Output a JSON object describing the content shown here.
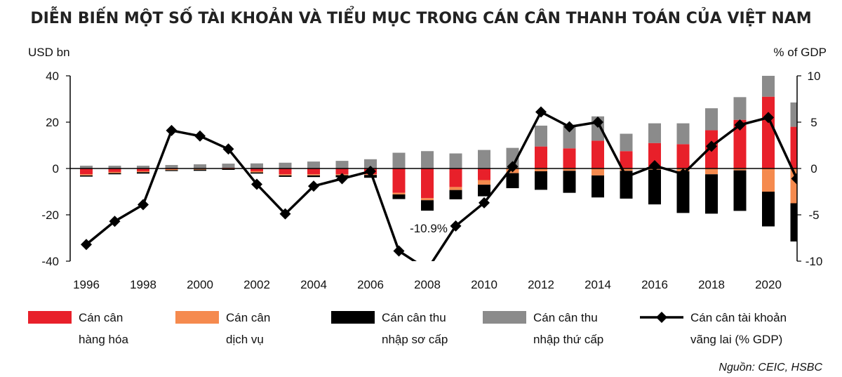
{
  "chart_data": {
    "type": "bar",
    "title": "DIỄN BIẾN MỘT SỐ TÀI KHOẢN VÀ TIỂU MỤC TRONG CÁN CÂN THANH TOÁN CỦA VIỆT NAM",
    "y_left_unit": "USD bn",
    "y_right_unit": "% of GDP",
    "ylim_left": [
      -40,
      40
    ],
    "ylim_right": [
      -10,
      10
    ],
    "y_left_ticks": [
      "40",
      "20",
      "0",
      "-20",
      "-40"
    ],
    "y_right_ticks": [
      "10",
      "5",
      "0",
      "-5",
      "-10"
    ],
    "x_tick_labels": [
      "1996",
      "1998",
      "2000",
      "2002",
      "2004",
      "2006",
      "2008",
      "2010",
      "2012",
      "2014",
      "2016",
      "2018",
      "2020"
    ],
    "years": [
      1996,
      1997,
      1998,
      1999,
      2000,
      2001,
      2002,
      2003,
      2004,
      2005,
      2006,
      2007,
      2008,
      2009,
      2010,
      2011,
      2012,
      2013,
      2014,
      2015,
      2016,
      2017,
      2018,
      2019,
      2020,
      2021
    ],
    "series": [
      {
        "name": "Cán cân hàng hóa",
        "color": "#e8202a",
        "stack": "bars",
        "values": [
          -2.5,
          -1.5,
          -1.2,
          -0.3,
          -0.2,
          0.3,
          -1.2,
          -2.5,
          -2.5,
          -2.5,
          -2.5,
          -10.5,
          -12.8,
          -8.0,
          -5.0,
          0.1,
          9.5,
          8.7,
          12.0,
          7.5,
          11.0,
          10.5,
          16.5,
          21.0,
          31.0,
          18.0
        ]
      },
      {
        "name": "Cán cân dịch vụ",
        "color": "#f58a4e",
        "stack": "bars",
        "values": [
          -0.5,
          -0.5,
          -0.4,
          -0.4,
          -0.3,
          -0.3,
          -0.5,
          -0.5,
          -0.5,
          -0.4,
          -0.3,
          -0.7,
          -0.9,
          -1.3,
          -2.0,
          -2.0,
          -1.2,
          -1.0,
          -3.0,
          -1.0,
          -0.5,
          -1.2,
          -2.5,
          -0.8,
          -10.0,
          -15.0
        ]
      },
      {
        "name": "Cán cân thu nhập sơ cấp",
        "color": "#000000",
        "stack": "bars",
        "values": [
          -0.5,
          -0.5,
          -0.6,
          -0.4,
          -0.5,
          -0.3,
          -0.5,
          -0.6,
          -0.7,
          -0.9,
          -1.2,
          -2.0,
          -4.5,
          -4.0,
          -5.0,
          -6.5,
          -8.0,
          -9.5,
          -9.5,
          -12.0,
          -15.0,
          -18.0,
          -17.0,
          -17.5,
          -15.0,
          -16.5
        ]
      },
      {
        "name": "Cán cân thu nhập thứ cấp",
        "color": "#8b8b8b",
        "stack": "bars",
        "values": [
          1.2,
          1.2,
          1.2,
          1.5,
          1.8,
          1.8,
          2.2,
          2.5,
          3.0,
          3.3,
          4.0,
          6.8,
          7.5,
          6.5,
          8.0,
          8.8,
          9.0,
          10.2,
          10.5,
          7.5,
          8.5,
          9.0,
          9.5,
          9.8,
          9.5,
          10.5
        ]
      },
      {
        "name": "Cán cân tài khoản vãng lai (% GDP)",
        "color": "#000000",
        "type": "line",
        "axis": "right",
        "values": [
          -8.2,
          -5.7,
          -3.9,
          4.1,
          3.5,
          2.1,
          -1.7,
          -4.9,
          -1.9,
          -1.1,
          -0.3,
          -8.9,
          -10.9,
          -6.2,
          -3.7,
          0.2,
          6.1,
          4.5,
          5.0,
          -0.9,
          0.3,
          -0.6,
          2.4,
          4.7,
          5.5,
          -1.1
        ]
      }
    ],
    "annotations": [
      {
        "text": "-10.9%",
        "year": 2008
      }
    ],
    "legend": [
      {
        "line1": "Cán cân",
        "line2": "hàng hóa",
        "color": "#e8202a",
        "kind": "box"
      },
      {
        "line1": "Cán cân",
        "line2": "dịch vụ",
        "color": "#f58a4e",
        "kind": "box"
      },
      {
        "line1": "Cán cân thu",
        "line2": "nhập sơ cấp",
        "color": "#000000",
        "kind": "box"
      },
      {
        "line1": "Cán cân thu",
        "line2": "nhập thứ cấp",
        "color": "#8b8b8b",
        "kind": "box"
      },
      {
        "line1": "Cán cân tài khoản",
        "line2": "vãng lai (% GDP)",
        "color": "#000000",
        "kind": "line"
      }
    ],
    "legend_position": "bottom",
    "grid": false,
    "source": "Nguồn: CEIC, HSBC"
  }
}
